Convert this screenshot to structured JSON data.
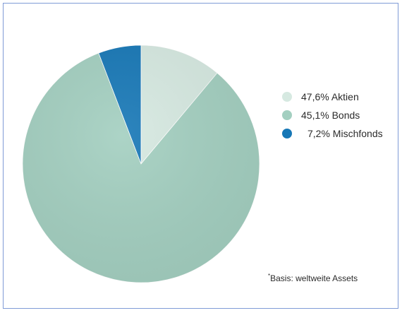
{
  "chart_data": {
    "type": "pie",
    "title": "",
    "slices": [
      {
        "label": "Aktien",
        "value": 47.6,
        "color": "#d6e9e1"
      },
      {
        "label": "Bonds",
        "value": 45.1,
        "color": "#a3cfc0"
      },
      {
        "label": "Mischfonds",
        "value": 7.2,
        "color": "#1677b6"
      }
    ],
    "legend_entries": [
      "47,6% Aktien",
      "45,1% Bonds",
      "7,2% Mischfonds"
    ],
    "legend_placement": "right"
  },
  "footnote": {
    "marker": "*",
    "text": "Basis: weltweite Assets"
  }
}
